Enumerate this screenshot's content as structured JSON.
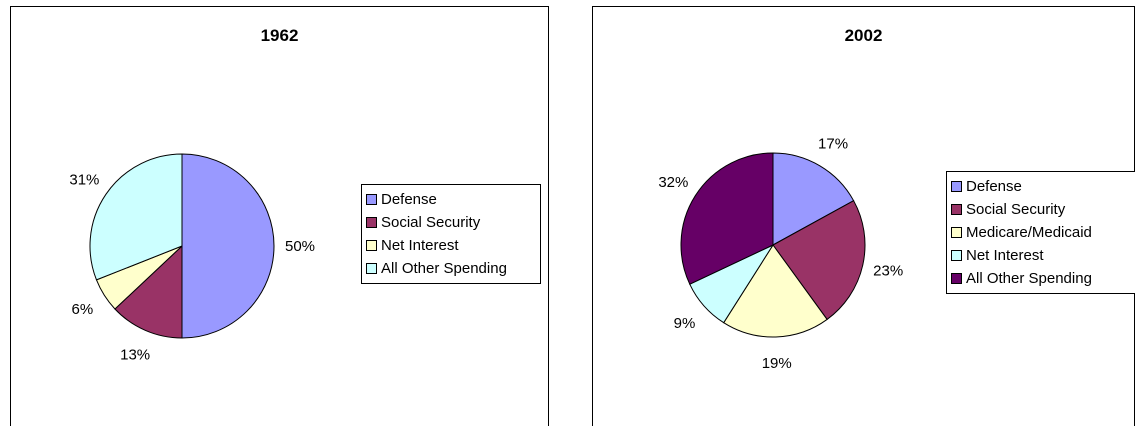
{
  "chart_data": [
    {
      "type": "pie",
      "title": "1962",
      "slices": [
        {
          "name": "Defense",
          "value": 50,
          "label": "50%",
          "color": "#9999FF"
        },
        {
          "name": "Social Security",
          "value": 13,
          "label": "13%",
          "color": "#993366"
        },
        {
          "name": "Net Interest",
          "value": 6,
          "label": "6%",
          "color": "#FFFFCC"
        },
        {
          "name": "All Other Spending",
          "value": 31,
          "label": "31%",
          "color": "#CCFFFF"
        }
      ],
      "legend": "right"
    },
    {
      "type": "pie",
      "title": "2002",
      "slices": [
        {
          "name": "Defense",
          "value": 17,
          "label": "17%",
          "color": "#9999FF"
        },
        {
          "name": "Social Security",
          "value": 23,
          "label": "23%",
          "color": "#993366"
        },
        {
          "name": "Medicare/Medicaid",
          "value": 19,
          "label": "19%",
          "color": "#FFFFCC"
        },
        {
          "name": "Net Interest",
          "value": 9,
          "label": "9%",
          "color": "#CCFFFF"
        },
        {
          "name": "All Other Spending",
          "value": 32,
          "label": "32%",
          "color": "#660066"
        }
      ],
      "legend": "right"
    }
  ]
}
